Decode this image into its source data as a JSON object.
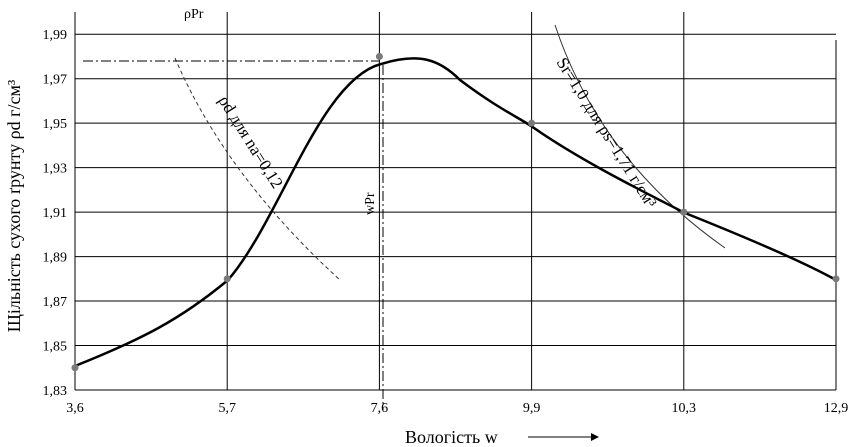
{
  "chart_data": {
    "type": "line",
    "xlabel": "Вологість w",
    "x_ticks": [
      "3,6",
      "5,7",
      "7,6",
      "9,9",
      "10,3",
      "12,9"
    ],
    "ylabel": "Щільність сухого ґрунту ρd г/см³",
    "y_ticks": [
      "1,83",
      "1,85",
      "1,87",
      "1,89",
      "1,91",
      "1,93",
      "1,95",
      "1,97",
      "1,99"
    ],
    "ylim": [
      1.83,
      2.0
    ],
    "grid": true,
    "series": [
      {
        "name": "",
        "style": "solid-thick",
        "x": [
          "3,6",
          "5,7",
          "7,6",
          "9,9",
          "10,3",
          "12,9"
        ],
        "values": [
          1.84,
          1.88,
          1.98,
          1.95,
          1.91,
          1.88
        ]
      }
    ],
    "annotations": {
      "rho_pr_label": "ρPr",
      "w_pr_label": "wPr",
      "dashed_curve_label": "ρd для na=0,12",
      "thin_curve_label": "Sr=1,0 для ρs=1,71 г/см³",
      "max_density": 1.98,
      "optimum_moisture_label": "7,6"
    }
  }
}
